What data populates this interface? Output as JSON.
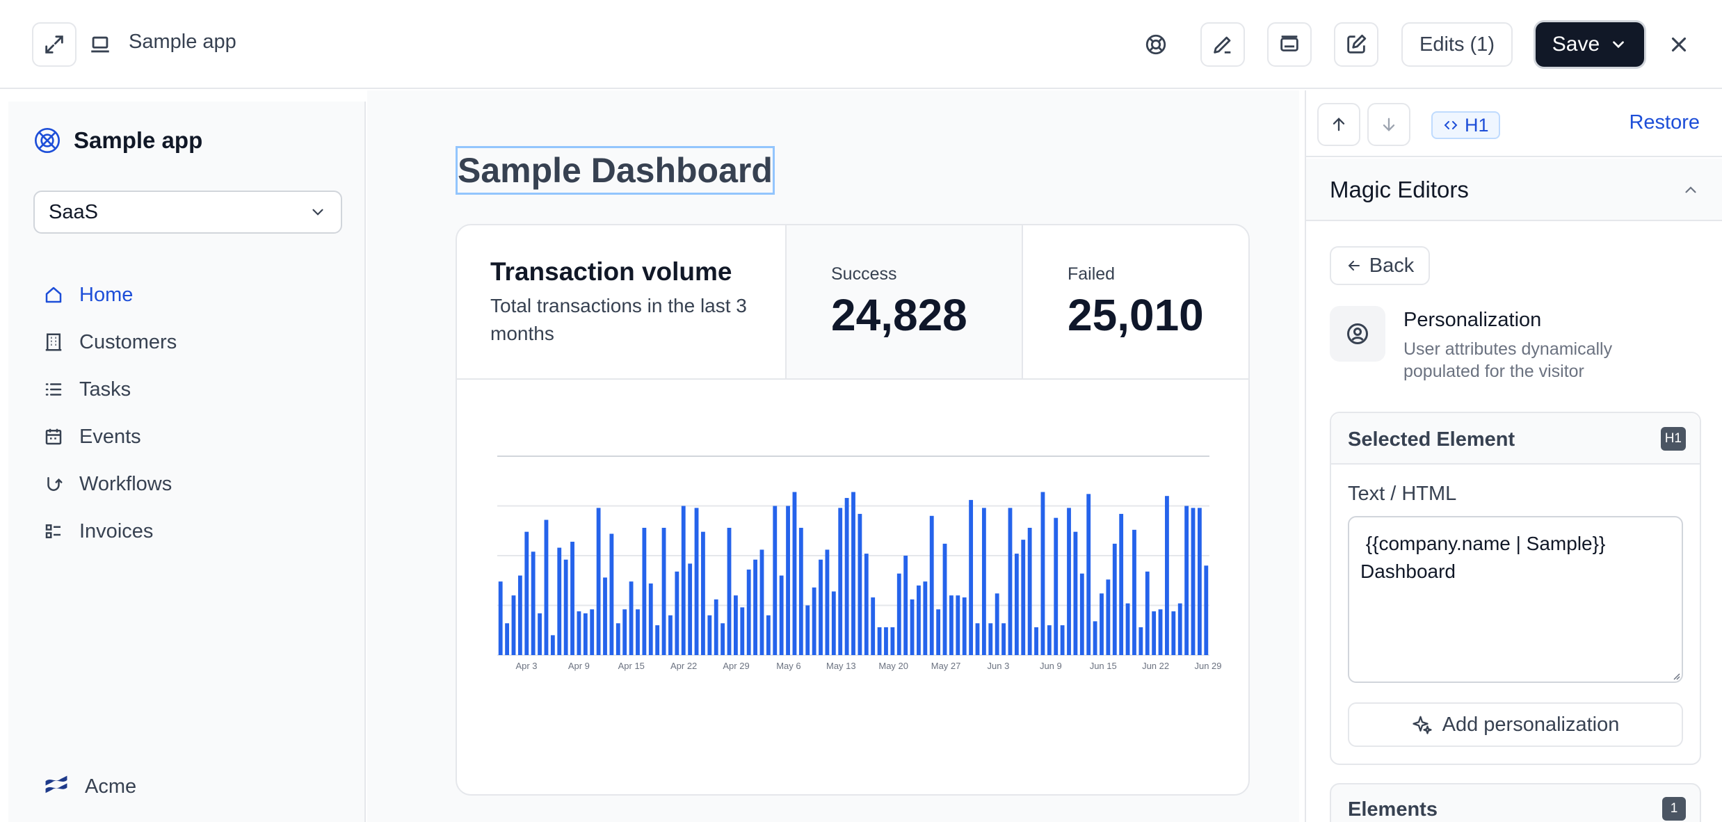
{
  "topbar": {
    "app_name": "Sample app",
    "edits_label": "Edits (1)",
    "save_label": "Save"
  },
  "sidebar": {
    "brand": "Sample app",
    "select_value": "SaaS",
    "items": [
      {
        "label": "Home",
        "icon": "home-icon",
        "active": true
      },
      {
        "label": "Customers",
        "icon": "building-icon"
      },
      {
        "label": "Tasks",
        "icon": "list-icon"
      },
      {
        "label": "Events",
        "icon": "calendar-icon"
      },
      {
        "label": "Workflows",
        "icon": "workflow-icon"
      },
      {
        "label": "Invoices",
        "icon": "invoice-icon"
      }
    ],
    "org": "Acme"
  },
  "main": {
    "heading": "Sample Dashboard",
    "card": {
      "title": "Transaction volume",
      "description": "Total transactions in the last 3 months",
      "stats": {
        "success_label": "Success",
        "success_value": "24,828",
        "failed_label": "Failed",
        "failed_value": "25,010"
      }
    }
  },
  "chart_data": {
    "type": "bar",
    "color": "#2563eb",
    "ylim": [
      0,
      100
    ],
    "grid": true,
    "tick_labels": [
      "Apr 3",
      "Apr 9",
      "Apr 15",
      "Apr 22",
      "Apr 29",
      "May 6",
      "May 13",
      "May 20",
      "May 27",
      "Jun 3",
      "Jun 9",
      "Jun 15",
      "Jun 22",
      "Jun 29"
    ],
    "values": [
      37,
      16,
      30,
      40,
      62,
      52,
      21,
      68,
      10,
      54,
      48,
      57,
      22,
      21,
      23,
      74,
      39,
      61,
      16,
      23,
      37,
      23,
      64,
      36,
      15,
      64,
      20,
      42,
      75,
      46,
      74,
      62,
      20,
      28,
      16,
      64,
      30,
      24,
      43,
      48,
      53,
      20,
      75,
      40,
      75,
      82,
      64,
      25,
      34,
      48,
      53,
      32,
      74,
      79,
      82,
      71,
      51,
      29,
      14,
      14,
      14,
      41,
      50,
      28,
      35,
      37,
      70,
      23,
      56,
      30,
      30,
      29,
      78,
      16,
      74,
      16,
      31,
      16,
      74,
      51,
      58,
      64,
      14,
      82,
      15,
      69,
      15,
      74,
      62,
      41,
      81,
      17,
      31,
      38,
      56,
      71,
      26,
      63,
      14,
      42,
      22,
      23,
      80,
      22,
      26,
      75,
      74,
      74,
      45
    ]
  },
  "rpanel": {
    "tag_label": "H1",
    "restore_label": "Restore",
    "magic_title": "Magic Editors",
    "back_label": "Back",
    "personalization_title": "Personalization",
    "personalization_desc": "User attributes dynamically populated for the visitor",
    "selected_title": "Selected Element",
    "selected_badge": "H1",
    "field_label": "Text / HTML",
    "field_value": " {{company.name | Sample}}\nDashboard",
    "add_label": "Add personalization",
    "elements_title": "Elements",
    "elements_count": "1"
  }
}
